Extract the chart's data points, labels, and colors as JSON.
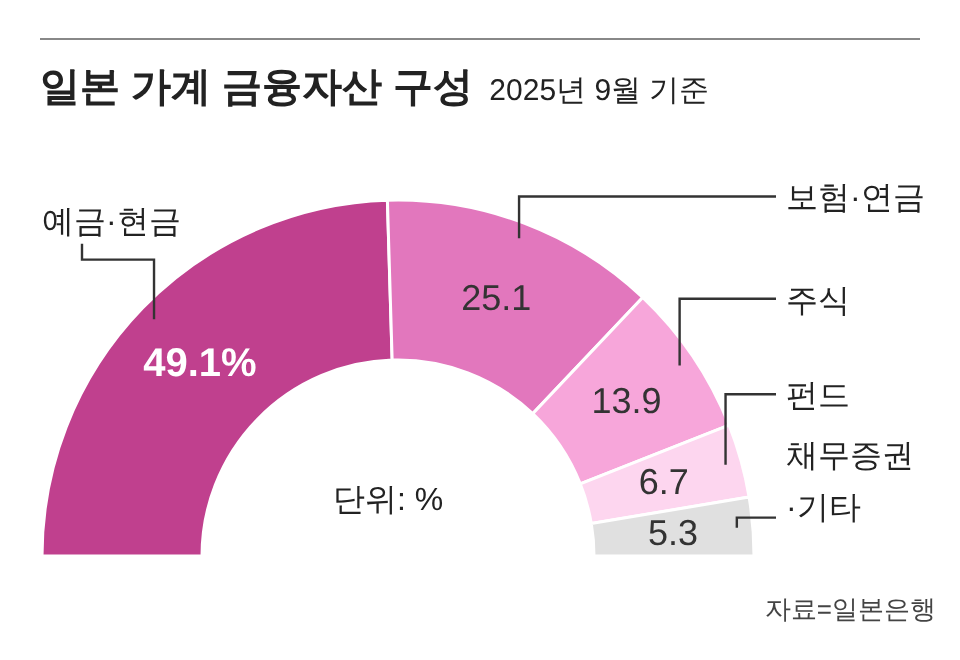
{
  "chart_data": {
    "type": "donut",
    "title": "일본 가계 금융자산 구성",
    "subtitle": "2025년 9월 기준",
    "categories": [
      "예금·현금",
      "보험·연금",
      "주식",
      "펀드",
      "채무증권·기타"
    ],
    "values": [
      49.1,
      25.1,
      13.9,
      6.7,
      5.3
    ],
    "value_labels": [
      "49.1%",
      "25.1",
      "13.9",
      "6.7",
      "5.3"
    ],
    "colors": [
      "#c0408e",
      "#e277bd",
      "#f7a6da",
      "#fdd6ef",
      "#e0e0e0"
    ],
    "annotations": [
      "단위: %",
      "자료=일본은행"
    ]
  }
}
